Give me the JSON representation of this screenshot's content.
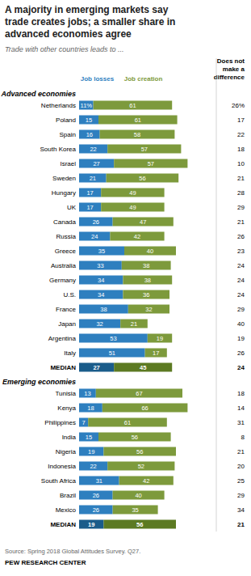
{
  "title": "A majority in emerging markets say\ntrade creates jobs; a smaller share in\nadvanced economies agree",
  "subtitle": "Trade with other countries leads to ...",
  "source": "Source: Spring 2018 Global Attitudes Survey. Q27.",
  "credit": "PEW RESEARCH CENTER",
  "chart_data": [
    {
      "type": "bar",
      "orientation": "horizontal",
      "stacked": true,
      "data_labels": true,
      "tick_labels": false,
      "grid": false,
      "title": "Advanced economies",
      "categories": [
        "Netherlands",
        "Poland",
        "Spain",
        "South Korea",
        "Israel",
        "Sweden",
        "Hungary",
        "UK",
        "Canada",
        "Russia",
        "Greece",
        "Australia",
        "Germany",
        "U.S.",
        "France",
        "Japan",
        "Argentina",
        "Italy",
        "MEDIAN"
      ],
      "xlim": [
        0,
        100
      ],
      "series": [
        {
          "name": "Job losses",
          "colors": [
            "#2e7fbf",
            "#2e7fbf",
            "#2e7fbf",
            "#2e7fbf",
            "#2e7fbf",
            "#2e7fbf",
            "#2e7fbf",
            "#2e7fbf",
            "#2e7fbf",
            "#2e7fbf",
            "#2e7fbf",
            "#2e7fbf",
            "#2e7fbf",
            "#2e7fbf",
            "#2e7fbf",
            "#2e7fbf",
            "#2e7fbf",
            "#2e7fbf",
            "#1a5c8a"
          ],
          "values": [
            11,
            15,
            16,
            22,
            27,
            21,
            17,
            17,
            26,
            24,
            35,
            33,
            34,
            34,
            38,
            32,
            53,
            51,
            27
          ],
          "value_labels": [
            "11%",
            "15",
            "16",
            "22",
            "27",
            "21",
            "17",
            "17",
            "26",
            "24",
            "35",
            "33",
            "34",
            "34",
            "38",
            "32",
            "53",
            "51",
            "27"
          ]
        },
        {
          "name": "Job creation",
          "colors": [
            "#7d9a3c",
            "#7d9a3c",
            "#7d9a3c",
            "#7d9a3c",
            "#7d9a3c",
            "#7d9a3c",
            "#7d9a3c",
            "#7d9a3c",
            "#7d9a3c",
            "#7d9a3c",
            "#7d9a3c",
            "#7d9a3c",
            "#7d9a3c",
            "#7d9a3c",
            "#7d9a3c",
            "#7d9a3c",
            "#7d9a3c",
            "#7d9a3c",
            "#5c7a22"
          ],
          "values": [
            61,
            61,
            58,
            57,
            57,
            56,
            49,
            49,
            47,
            42,
            40,
            38,
            38,
            36,
            32,
            21,
            19,
            17,
            45
          ]
        },
        {
          "name": "Does not\nmake a\ndifference",
          "type": "text",
          "values": [
            26,
            17,
            22,
            18,
            10,
            21,
            28,
            29,
            21,
            26,
            23,
            24,
            24,
            24,
            29,
            40,
            19,
            26,
            24
          ],
          "value_labels": [
            "26%",
            "17",
            "22",
            "18",
            "10",
            "21",
            "28",
            "29",
            "21",
            "26",
            "23",
            "24",
            "24",
            "24",
            "29",
            "40",
            "19",
            "26",
            "24"
          ]
        }
      ]
    },
    {
      "type": "bar",
      "orientation": "horizontal",
      "stacked": true,
      "data_labels": true,
      "tick_labels": false,
      "grid": false,
      "title": "Emerging economies",
      "categories": [
        "Tunisia",
        "Kenya",
        "Philippines",
        "India",
        "Nigeria",
        "Indonesia",
        "South Africa",
        "Brazil",
        "Mexico",
        "MEDIAN"
      ],
      "xlim": [
        0,
        100
      ],
      "series": [
        {
          "colors": [
            "#2e7fbf",
            "#2e7fbf",
            "#2e7fbf",
            "#2e7fbf",
            "#2e7fbf",
            "#2e7fbf",
            "#2e7fbf",
            "#2e7fbf",
            "#2e7fbf",
            "#1a5c8a"
          ],
          "values": [
            13,
            18,
            7,
            15,
            19,
            22,
            31,
            26,
            26,
            19
          ]
        },
        {
          "colors": [
            "#7d9a3c",
            "#7d9a3c",
            "#7d9a3c",
            "#7d9a3c",
            "#7d9a3c",
            "#7d9a3c",
            "#7d9a3c",
            "#7d9a3c",
            "#7d9a3c",
            "#5c7a22"
          ],
          "values": [
            67,
            66,
            61,
            56,
            56,
            52,
            42,
            40,
            35,
            56
          ]
        },
        {
          "type": "text",
          "values": [
            18,
            14,
            31,
            8,
            21,
            20,
            25,
            29,
            34,
            21
          ]
        }
      ]
    }
  ]
}
